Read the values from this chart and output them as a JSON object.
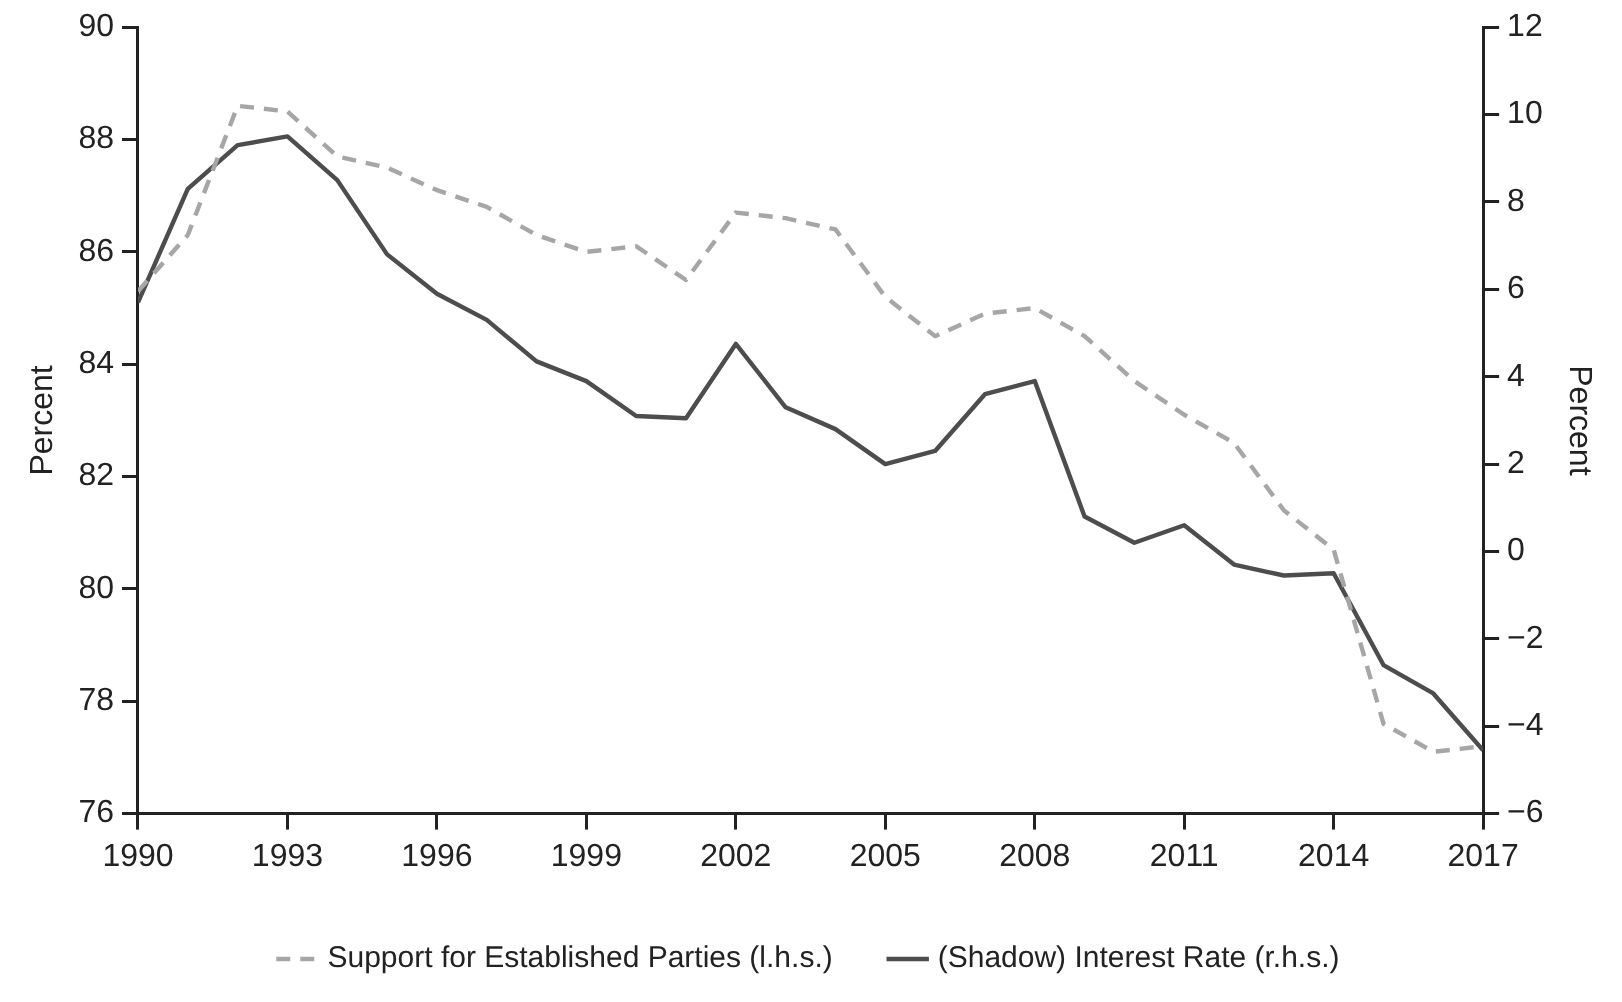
{
  "chart_data": {
    "type": "line",
    "x": [
      1990,
      1991,
      1992,
      1993,
      1994,
      1995,
      1996,
      1997,
      1998,
      1999,
      2000,
      2001,
      2002,
      2003,
      2004,
      2005,
      2006,
      2007,
      2008,
      2009,
      2010,
      2011,
      2012,
      2013,
      2014,
      2015,
      2016,
      2017
    ],
    "series": [
      {
        "name": "Support for Established Parties (l.h.s.)",
        "color": "#a6a6a6",
        "line_style": "dashed",
        "values": [
          85.3,
          86.3,
          88.6,
          88.5,
          87.7,
          87.5,
          87.1,
          86.8,
          86.3,
          86.0,
          86.1,
          85.5,
          86.7,
          86.6,
          86.4,
          85.2,
          84.5,
          84.9,
          85.0,
          84.5,
          83.7,
          83.1,
          82.6,
          81.4,
          80.7,
          77.6,
          77.1,
          77.2
        ]
      },
      {
        "name": "(Shadow) Interest Rate (r.h.s.)",
        "color": "#4d4d4d",
        "line_style": "solid",
        "axis": "y2",
        "values": [
          5.7,
          8.3,
          9.3,
          9.5,
          8.5,
          6.8,
          5.9,
          5.3,
          4.35,
          3.9,
          3.1,
          3.05,
          4.75,
          3.3,
          2.8,
          2.0,
          2.3,
          3.6,
          3.9,
          0.8,
          0.2,
          0.6,
          -0.3,
          -0.55,
          -0.5,
          -2.6,
          -3.25,
          -4.55
        ]
      }
    ],
    "ylabel": "Percent",
    "y2label": "Percent",
    "xlim": [
      1990,
      2017
    ],
    "xticks": [
      1990,
      1993,
      1996,
      1999,
      2002,
      2005,
      2008,
      2011,
      2014,
      2017
    ],
    "ylim": [
      76,
      90
    ],
    "yticks": [
      76,
      78,
      80,
      82,
      84,
      86,
      88,
      90
    ],
    "y2lim": [
      -6,
      12
    ],
    "y2ticks": [
      {
        "value": -6,
        "label": "−6"
      },
      {
        "value": -4,
        "label": "−4"
      },
      {
        "value": -2,
        "label": "−2"
      },
      0,
      2,
      4,
      6,
      8,
      10,
      12
    ],
    "grid": false,
    "legend": "bottom",
    "marker": "none"
  }
}
